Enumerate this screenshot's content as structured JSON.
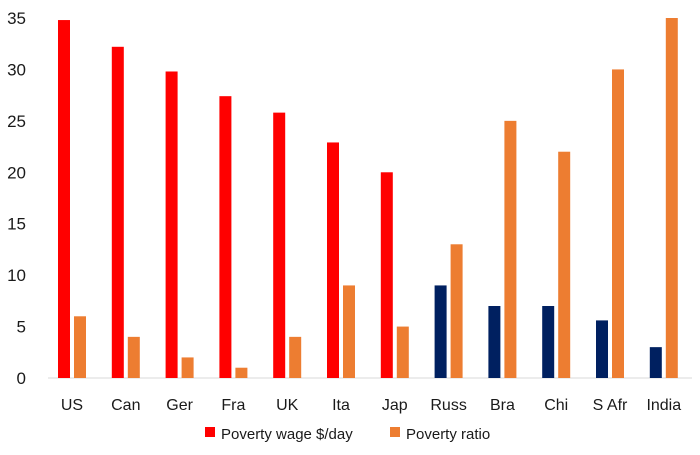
{
  "chart_data": {
    "type": "bar",
    "title": "",
    "xlabel": "",
    "ylabel": "",
    "ylim": [
      0,
      35
    ],
    "yticks": [
      0,
      5,
      10,
      15,
      20,
      25,
      30,
      35
    ],
    "grid": false,
    "legend_position": "bottom",
    "categories": [
      "US",
      "Can",
      "Ger",
      "Fra",
      "UK",
      "Ita",
      "Jap",
      "Russ",
      "Bra",
      "Chi",
      "S Afr",
      "India"
    ],
    "series": [
      {
        "name": "Poverty wage $/day",
        "color": "#ff0000",
        "alt_color": "#002060",
        "alt_color_categories": [
          "Russ",
          "Bra",
          "Chi",
          "S Afr",
          "India"
        ],
        "values": [
          34.8,
          32.2,
          29.8,
          27.4,
          25.8,
          22.9,
          20.0,
          9.0,
          7.0,
          7.0,
          5.6,
          3.0
        ]
      },
      {
        "name": "Poverty ratio",
        "color": "#ed7d31",
        "values": [
          6,
          4,
          2,
          1,
          4,
          9,
          5,
          13,
          25,
          22,
          30,
          35
        ]
      }
    ]
  }
}
